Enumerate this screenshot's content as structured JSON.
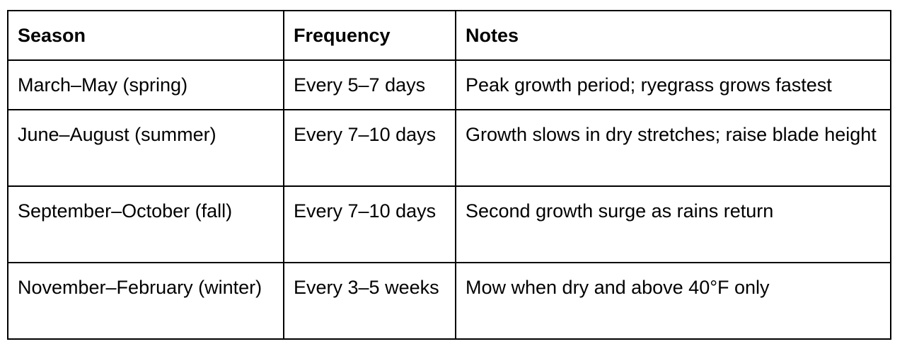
{
  "table": {
    "headers": [
      "Season",
      "Frequency",
      "Notes"
    ],
    "rows": [
      {
        "season": "March–May (spring)",
        "frequency": "Every 5–7 days",
        "notes": "Peak growth period; ryegrass grows fastest"
      },
      {
        "season": "June–August (summer)",
        "frequency": "Every 7–10 days",
        "notes": "Growth slows in dry stretches; raise blade height"
      },
      {
        "season": "September–October (fall)",
        "frequency": "Every 7–10 days",
        "notes": "Second growth surge as rains return"
      },
      {
        "season": "November–February (winter)",
        "frequency": "Every 3–5 weeks",
        "notes": "Mow when dry and above 40°F only"
      }
    ]
  }
}
